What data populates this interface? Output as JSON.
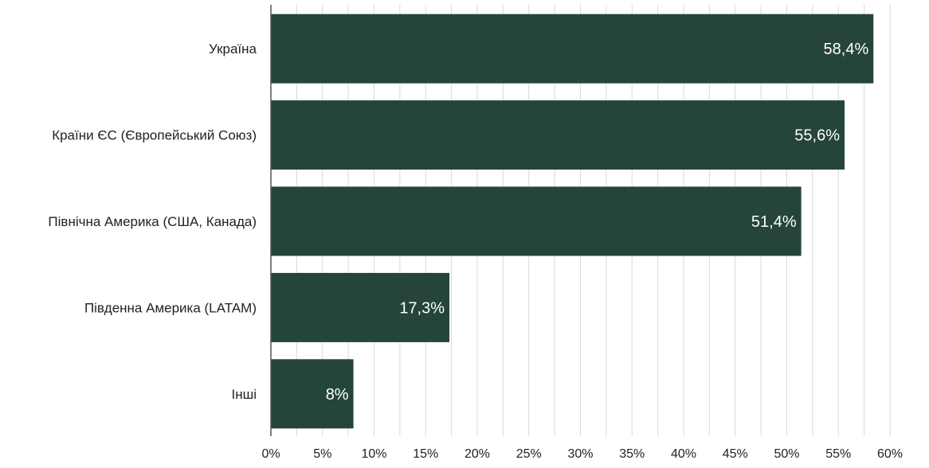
{
  "chart_data": {
    "type": "bar",
    "orientation": "horizontal",
    "categories": [
      "Україна",
      "Країни ЄС (Європейський Союз)",
      "Північна Америка (США, Канада)",
      "Південна Америка (LATAM)",
      "Інші"
    ],
    "values": [
      58.4,
      55.6,
      51.4,
      17.3,
      8
    ],
    "data_labels": [
      "58,4%",
      "55,6%",
      "51,4%",
      "17,3%",
      "8%"
    ],
    "xlim": [
      0,
      60
    ],
    "x_ticks": [
      "0%",
      "5%",
      "10%",
      "15%",
      "20%",
      "25%",
      "30%",
      "35%",
      "40%",
      "45%",
      "50%",
      "55%",
      "60%"
    ],
    "grid": true,
    "bar_color": "#25453a",
    "title": "",
    "xlabel": "",
    "ylabel": ""
  }
}
